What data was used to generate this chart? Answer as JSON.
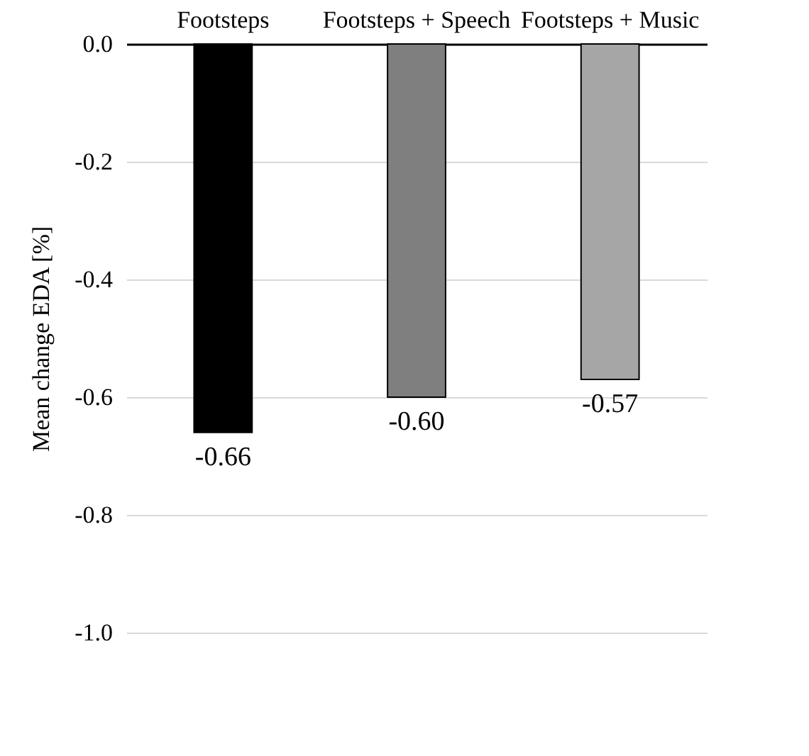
{
  "chart_data": {
    "type": "bar",
    "ylabel": "Mean change EDA [%]",
    "categories": [
      "Footsteps",
      "Footsteps +\nSpeech",
      "Footsteps +\nMusic"
    ],
    "values": [
      -0.66,
      -0.6,
      -0.57
    ],
    "colors": [
      "#000000",
      "#7f7f7f",
      "#a6a6a6"
    ],
    "value_labels": [
      "-0.66",
      "-0.60",
      "-0.57"
    ],
    "ylim": [
      -1.0,
      0.0
    ],
    "yticks": [
      {
        "value": -1.0,
        "label": "-1.0"
      },
      {
        "value": -0.8,
        "label": "-0.8"
      },
      {
        "value": -0.6,
        "label": "-0.6"
      },
      {
        "value": -0.4,
        "label": "-0.4"
      },
      {
        "value": -0.2,
        "label": "-0.2"
      },
      {
        "value": 0.0,
        "label": "0.0"
      }
    ],
    "grid": "y",
    "legend": false
  }
}
